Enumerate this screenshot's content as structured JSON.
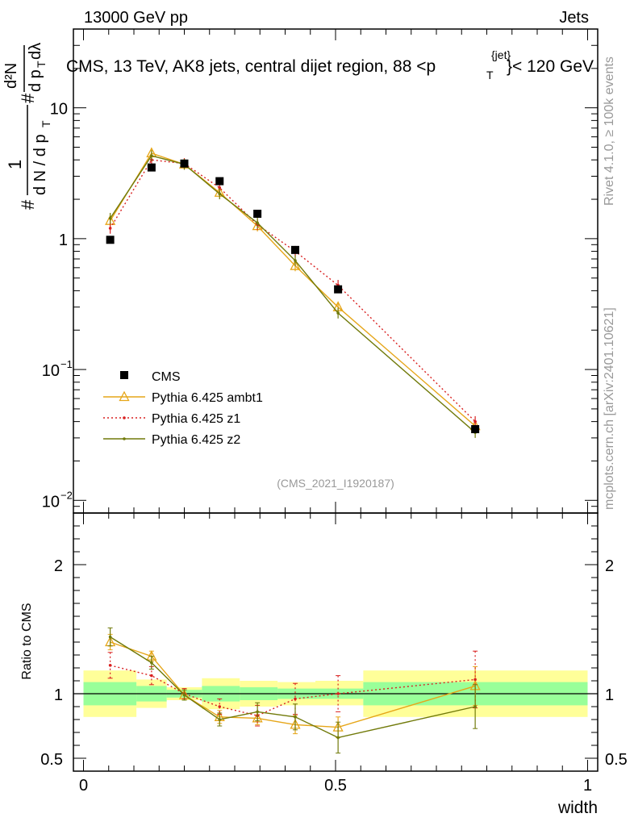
{
  "header": {
    "left": "13000 GeV pp",
    "right": "Jets"
  },
  "side": {
    "top": "Rivet 4.1.0, ≥ 100k events",
    "bottom": "mcplots.cern.ch [arXiv:2401.10621]"
  },
  "chart_data": {
    "type": "line",
    "title_main": "CMS, 13 TeV, AK8 jets, central dijet region, 88 <p",
    "title_sup": "{jet}",
    "title_sub": "T",
    "title_end": "}< 120 GeV",
    "analysis": "(CMS_2021_I1920187)",
    "xlabel": "width",
    "ylabel_ratio": "Ratio to CMS",
    "xlim": [
      -0.02,
      1.02
    ],
    "x_ticks": [
      "0",
      "0.5",
      "1"
    ],
    "x_tick_values": [
      0,
      0.5,
      1
    ],
    "ylim_main": [
      0.008,
      40
    ],
    "y_ticks_main": [
      {
        "value": 10,
        "label": "10"
      },
      {
        "value": 1,
        "label": "1"
      },
      {
        "value": 0.1,
        "label": "10",
        "exp": "−1"
      },
      {
        "value": 0.01,
        "label": "10",
        "exp": "−2"
      }
    ],
    "ylim_ratio": [
      0.4,
      2.4
    ],
    "y_ticks_ratio": [
      {
        "value": 2,
        "label": "2"
      },
      {
        "value": 1,
        "label": "1"
      },
      {
        "value": 0.5,
        "label": "0.5"
      }
    ],
    "bins": [
      {
        "lo": 0.0,
        "hi": 0.105,
        "y1": [
          0.91,
          1.09
        ],
        "y2": [
          0.82,
          1.18
        ]
      },
      {
        "lo": 0.105,
        "hi": 0.165,
        "y1": [
          0.94,
          1.06
        ],
        "y2": [
          0.89,
          1.11
        ]
      },
      {
        "lo": 0.165,
        "hi": 0.235,
        "y1": [
          0.97,
          1.03
        ],
        "y2": [
          0.95,
          1.05
        ]
      },
      {
        "lo": 0.235,
        "hi": 0.31,
        "y1": [
          0.94,
          1.06
        ],
        "y2": [
          0.88,
          1.12
        ]
      },
      {
        "lo": 0.31,
        "hi": 0.385,
        "y1": [
          0.95,
          1.05
        ],
        "y2": [
          0.9,
          1.1
        ]
      },
      {
        "lo": 0.385,
        "hi": 0.46,
        "y1": [
          0.96,
          1.04
        ],
        "y2": [
          0.91,
          1.09
        ]
      },
      {
        "lo": 0.46,
        "hi": 0.555,
        "y1": [
          0.96,
          1.04
        ],
        "y2": [
          0.91,
          1.1
        ]
      },
      {
        "lo": 0.555,
        "hi": 1.0,
        "y1": [
          0.91,
          1.09
        ],
        "y2": [
          0.82,
          1.18
        ]
      }
    ],
    "x": [
      0.053,
      0.135,
      0.2,
      0.27,
      0.345,
      0.42,
      0.505,
      0.777
    ],
    "series": [
      {
        "name": "CMS",
        "color": "#000000",
        "values": [
          0.98,
          3.5,
          3.75,
          2.75,
          1.55,
          0.82,
          0.41,
          0.035
        ]
      },
      {
        "name": "Pythia 6.425 ambt1",
        "color": "#e6a619",
        "values": [
          1.37,
          4.5,
          3.7,
          2.25,
          1.25,
          0.62,
          0.3,
          0.037
        ],
        "ratio": [
          1.4,
          1.29,
          0.99,
          0.82,
          0.81,
          0.76,
          0.74,
          1.06
        ],
        "ratio_err": [
          0.06,
          0.04,
          0.04,
          0.05,
          0.05,
          0.07,
          0.08,
          0.15
        ]
      },
      {
        "name": "Pythia 6.425 z1",
        "color": "#d92020",
        "values": [
          1.2,
          4.0,
          3.75,
          2.45,
          1.28,
          0.8,
          0.44,
          0.04
        ],
        "ratio": [
          1.22,
          1.14,
          1.0,
          0.9,
          0.83,
          0.96,
          1.0,
          1.11
        ],
        "ratio_err": [
          0.1,
          0.07,
          0.04,
          0.06,
          0.08,
          0.12,
          0.14,
          0.22
        ]
      },
      {
        "name": "Pythia 6.425 z2",
        "color": "#717a0a",
        "values": [
          1.43,
          4.3,
          3.7,
          2.2,
          1.32,
          0.68,
          0.27,
          0.033
        ],
        "ratio": [
          1.44,
          1.24,
          0.99,
          0.8,
          0.86,
          0.82,
          0.66,
          0.9
        ],
        "ratio_err": [
          0.07,
          0.05,
          0.04,
          0.05,
          0.07,
          0.1,
          0.12,
          0.17
        ]
      }
    ]
  }
}
